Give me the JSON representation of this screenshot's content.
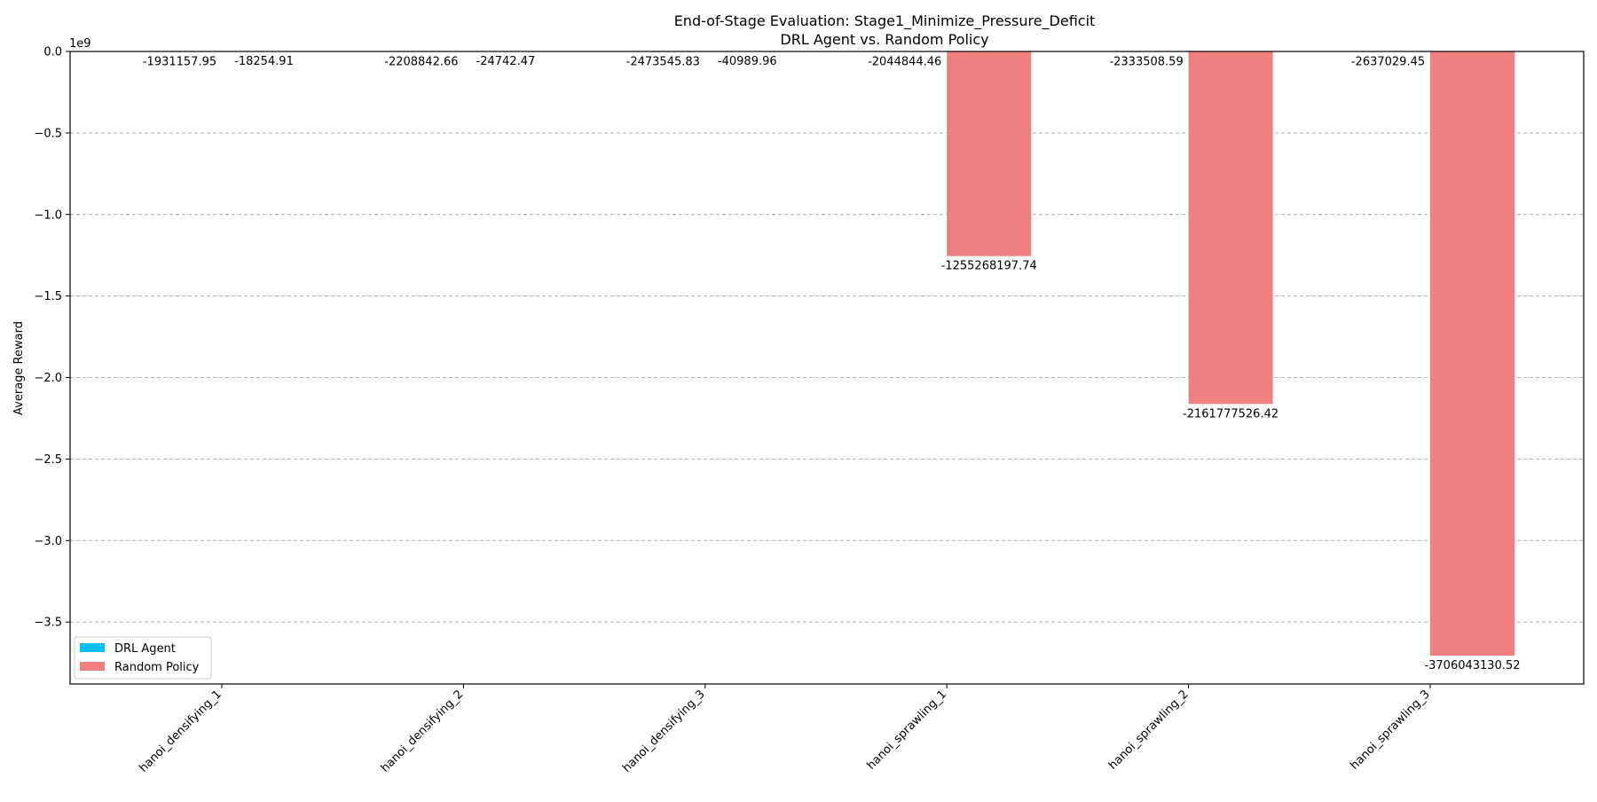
{
  "chart_data": {
    "type": "bar",
    "title": "End-of-Stage Evaluation: Stage1_Minimize_Pressure_Deficit",
    "subtitle": "DRL Agent vs. Random Policy",
    "xlabel": "",
    "ylabel": "Average Reward",
    "y_offset_label": "1e9",
    "ylim": [
      -3.88,
      0.0
    ],
    "y_ticks": [
      0.0,
      -0.5,
      -1.0,
      -1.5,
      -2.0,
      -2.5,
      -3.0,
      -3.5
    ],
    "y_tick_labels": [
      "0.0",
      "−0.5",
      "−1.0",
      "−1.5",
      "−2.0",
      "−2.5",
      "−3.0",
      "−3.5"
    ],
    "grid": "y-dashed",
    "legend_position": "lower-left",
    "categories": [
      "hanoi_densifying_1",
      "hanoi_densifying_2",
      "hanoi_densifying_3",
      "hanoi_sprawling_1",
      "hanoi_sprawling_2",
      "hanoi_sprawling_3"
    ],
    "series": [
      {
        "name": "DRL Agent",
        "color": "#00bfff",
        "values": [
          -1931157.95,
          -2208842.66,
          -2473545.83,
          -2044844.46,
          -2333508.59,
          -2637029.45
        ],
        "labels": [
          "-1931157.95",
          "-2208842.66",
          "-2473545.83",
          "-2044844.46",
          "-2333508.59",
          "-2637029.45"
        ]
      },
      {
        "name": "Random Policy",
        "color": "#f08080",
        "values": [
          -18254.91,
          -24742.47,
          -40989.96,
          -1255268197.74,
          -2161777526.42,
          -3706043130.52
        ],
        "labels": [
          "-18254.91",
          "-24742.47",
          "-40989.96",
          "-1255268197.74",
          "-2161777526.42",
          "-3706043130.52"
        ]
      }
    ]
  }
}
